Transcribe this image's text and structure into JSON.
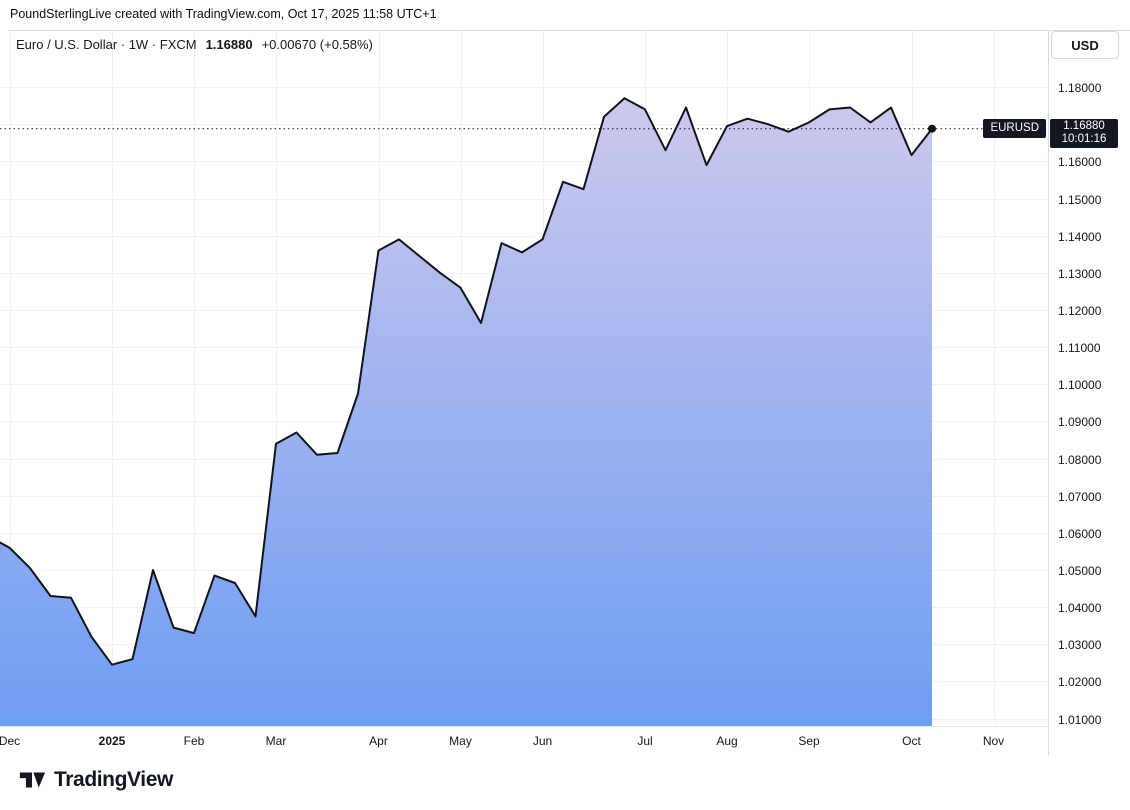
{
  "attribution": "PoundSterlingLive created with TradingView.com, Oct 17, 2025 11:58 UTC+1",
  "header": {
    "title": "Euro / U.S. Dollar · 1W · FXCM",
    "price": "1.16880",
    "change": "+0.00670 (+0.58%)"
  },
  "price_scale": {
    "currency_button": "USD"
  },
  "last_price_label": {
    "symbol": "EURUSD",
    "price": "1.16880",
    "countdown": "10:01:16"
  },
  "footer": {
    "logo_text": "TradingView"
  },
  "chart_data": {
    "type": "area",
    "symbol": "EURUSD",
    "description": "Euro / U.S. Dollar",
    "interval": "1W",
    "exchange": "FXCM",
    "last_price": 1.1688,
    "change_text": "+0.00670 (+0.58%)",
    "y_range": [
      1.008,
      1.1951
    ],
    "y_ticks": [
      1.18,
      1.17,
      1.16,
      1.15,
      1.14,
      1.13,
      1.12,
      1.11,
      1.1,
      1.09,
      1.08,
      1.07,
      1.06,
      1.05,
      1.04,
      1.03,
      1.02,
      1.01
    ],
    "x_ticks": [
      {
        "label": "Dec",
        "week": 1
      },
      {
        "label": "2025",
        "week": 6,
        "bold": true
      },
      {
        "label": "Feb",
        "week": 10
      },
      {
        "label": "Mar",
        "week": 14
      },
      {
        "label": "Apr",
        "week": 19
      },
      {
        "label": "May",
        "week": 23
      },
      {
        "label": "Jun",
        "week": 27
      },
      {
        "label": "Jul",
        "week": 32
      },
      {
        "label": "Aug",
        "week": 36
      },
      {
        "label": "Sep",
        "week": 40
      },
      {
        "label": "Oct",
        "week": 45
      },
      {
        "label": "Nov",
        "week": 49
      }
    ],
    "weekly_closes": [
      1.059,
      1.056,
      1.0505,
      1.043,
      1.0425,
      1.032,
      1.0245,
      1.026,
      1.05,
      1.0345,
      1.033,
      1.0485,
      1.0465,
      1.0375,
      1.084,
      1.087,
      1.081,
      1.0815,
      1.0975,
      1.136,
      1.139,
      1.1345,
      1.13,
      1.126,
      1.1165,
      1.138,
      1.1355,
      1.139,
      1.1545,
      1.1525,
      1.172,
      1.177,
      1.174,
      1.163,
      1.1745,
      1.159,
      1.1695,
      1.1715,
      1.17,
      1.168,
      1.1705,
      1.174,
      1.1745,
      1.1705,
      1.1745,
      1.1617,
      1.1688
    ],
    "colors": {
      "line": "#10131c",
      "fill_top": "#d6cdec",
      "fill_bottom": "#6e9df3",
      "grid": "#eef1f7",
      "axis_text": "#131722",
      "label_bg": "#131722",
      "label_fg": "#ffffff"
    }
  }
}
